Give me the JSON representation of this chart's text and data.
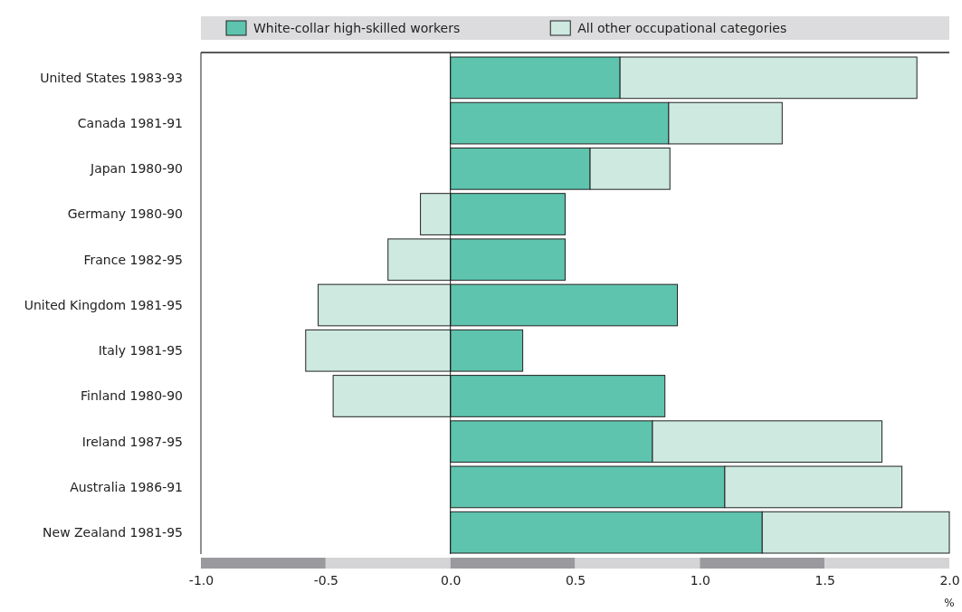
{
  "chart_data": {
    "type": "bar",
    "orientation": "horizontal",
    "stacked": true,
    "xlabel": "%",
    "legend": "top",
    "categories": [
      "United States 1983-93",
      "Canada 1981-91",
      "Japan 1980-90",
      "Germany 1980-90",
      "France 1982-95",
      "United Kingdom 1981-95",
      "Italy 1981-95",
      "Finland 1980-90",
      "Ireland 1987-95",
      "Australia 1986-91",
      "New Zealand 1981-95"
    ],
    "series": [
      {
        "name": "White-collar high-skilled workers",
        "color": "#5ec4ad",
        "values": [
          0.68,
          0.875,
          0.56,
          0.46,
          0.46,
          0.91,
          0.29,
          0.86,
          0.81,
          1.1,
          1.25
        ]
      },
      {
        "name": "All other occupational categories",
        "color": "#cde9e0",
        "values": [
          1.19,
          0.455,
          0.32,
          -0.12,
          -0.25,
          -0.53,
          -0.58,
          -0.47,
          0.92,
          0.71,
          0.75
        ]
      }
    ],
    "xlim": [
      -1,
      2
    ],
    "xticks": [
      {
        "value": -1,
        "label": "-1.0"
      },
      {
        "value": -0.5,
        "label": "-0.5"
      },
      {
        "value": 0,
        "label": "0.0"
      },
      {
        "value": 0.5,
        "label": "0.5"
      },
      {
        "value": 1,
        "label": "1.0"
      },
      {
        "value": 1.5,
        "label": "1.5"
      },
      {
        "value": 2,
        "label": "2.0"
      }
    ]
  }
}
